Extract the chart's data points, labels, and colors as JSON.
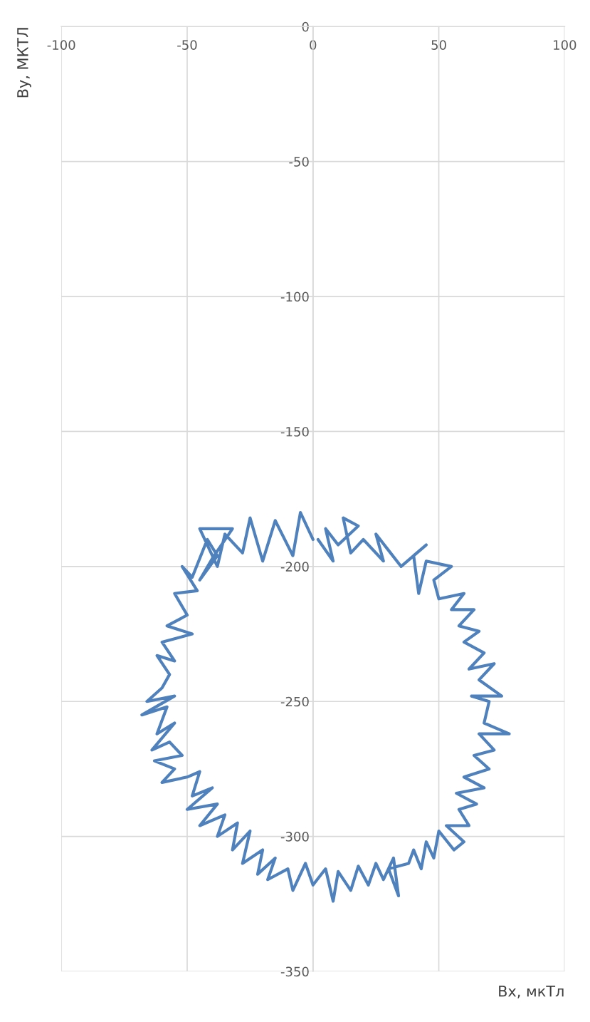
{
  "chart_data": {
    "type": "line",
    "xlabel": "Bx, мкТл",
    "ylabel": "By, МКТЛ",
    "xlim": [
      -100,
      100
    ],
    "xticks": [
      -100,
      -50,
      0,
      50,
      100
    ],
    "ylim": [
      -350,
      0
    ],
    "yticks": [
      -350,
      -300,
      -250,
      -200,
      -150,
      -100,
      -50,
      0
    ],
    "grid": true,
    "marker": "none",
    "line_style": "solid",
    "series": [
      {
        "color": "#4f81bd",
        "x": [
          0,
          -5,
          -8,
          -15,
          -20,
          -25,
          -28,
          -35,
          -38,
          -45,
          -32,
          -40,
          -45,
          -38,
          -42,
          -48,
          -52,
          -46,
          -55,
          -50,
          -58,
          -48,
          -60,
          -55,
          -62,
          -57,
          -60,
          -66,
          -55,
          -68,
          -58,
          -62,
          -55,
          -64,
          -57,
          -52,
          -63,
          -55,
          -60,
          -50,
          -45,
          -48,
          -40,
          -50,
          -38,
          -45,
          -35,
          -38,
          -30,
          -32,
          -25,
          -28,
          -20,
          -22,
          -15,
          -18,
          -10,
          -8,
          -3,
          0,
          5,
          8,
          10,
          15,
          18,
          22,
          25,
          28,
          32,
          34,
          30,
          38,
          40,
          43,
          45,
          48,
          50,
          56,
          60,
          53,
          62,
          58,
          65,
          57,
          68,
          60,
          70,
          64,
          72,
          66,
          78,
          68,
          70,
          63,
          75,
          66,
          72,
          62,
          68,
          60,
          66,
          58,
          64,
          55,
          60,
          50,
          48,
          55,
          45,
          42,
          40,
          45,
          35,
          30,
          25,
          28,
          20,
          15,
          12,
          18,
          10,
          5,
          8,
          2
        ],
        "values": [
          -190,
          -180,
          -196,
          -183,
          -198,
          -182,
          -195,
          -188,
          -200,
          -186,
          -186,
          -197,
          -205,
          -196,
          -190,
          -204,
          -200,
          -209,
          -210,
          -218,
          -222,
          -225,
          -228,
          -235,
          -233,
          -240,
          -245,
          -250,
          -248,
          -255,
          -252,
          -262,
          -258,
          -268,
          -265,
          -270,
          -272,
          -275,
          -280,
          -278,
          -276,
          -285,
          -282,
          -290,
          -288,
          -296,
          -292,
          -300,
          -295,
          -305,
          -298,
          -310,
          -305,
          -314,
          -308,
          -316,
          -312,
          -320,
          -310,
          -318,
          -312,
          -324,
          -313,
          -320,
          -311,
          -318,
          -310,
          -316,
          -308,
          -322,
          -312,
          -310,
          -305,
          -312,
          -302,
          -308,
          -298,
          -305,
          -302,
          -296,
          -296,
          -290,
          -288,
          -284,
          -282,
          -278,
          -275,
          -270,
          -268,
          -262,
          -262,
          -258,
          -250,
          -248,
          -248,
          -242,
          -236,
          -238,
          -232,
          -228,
          -224,
          -222,
          -216,
          -216,
          -210,
          -212,
          -205,
          -200,
          -198,
          -210,
          -196,
          -192,
          -200,
          -194,
          -188,
          -198,
          -190,
          -195,
          -182,
          -185,
          -192,
          -186,
          -198,
          -190
        ]
      }
    ]
  }
}
